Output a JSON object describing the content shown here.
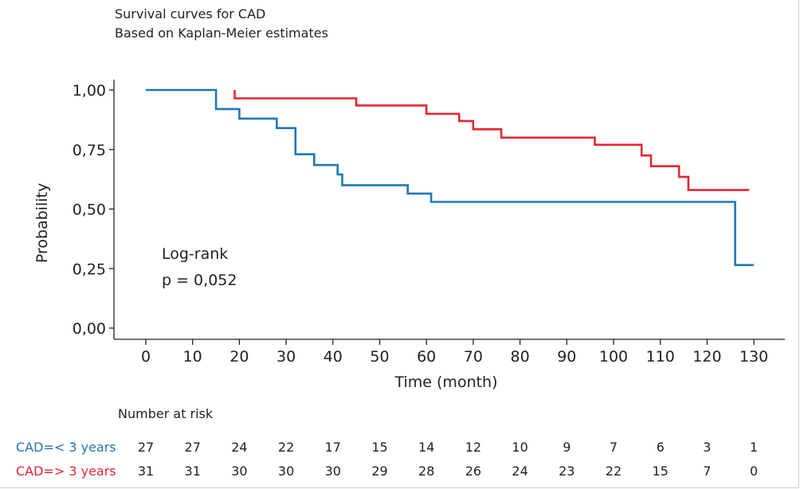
{
  "header": {
    "title": "Survival curves for CAD",
    "subtitle": "Based on Kaplan-Meier estimates"
  },
  "chart_data": {
    "type": "line",
    "subtype": "kaplan-meier-step",
    "title": "Survival curves for CAD",
    "subtitle": "Based on Kaplan-Meier estimates",
    "xlabel": "Time (month)",
    "ylabel": "Probability",
    "xlim": [
      0,
      130
    ],
    "ylim": [
      0,
      1
    ],
    "x_ticks": [
      0,
      10,
      20,
      30,
      40,
      50,
      60,
      70,
      80,
      90,
      100,
      110,
      120,
      130
    ],
    "y_ticks": [
      0,
      0.25,
      0.5,
      0.75,
      1
    ],
    "y_tick_labels": [
      "0,00",
      "0,25",
      "0,50",
      "0,75",
      "1,00"
    ],
    "series": [
      {
        "name": "CAD=< 3 years",
        "color": "#1f77b4",
        "points": [
          [
            0,
            1.0
          ],
          [
            15,
            1.0
          ],
          [
            15,
            0.92
          ],
          [
            20,
            0.92
          ],
          [
            20,
            0.88
          ],
          [
            28,
            0.88
          ],
          [
            28,
            0.84
          ],
          [
            32,
            0.84
          ],
          [
            32,
            0.73
          ],
          [
            36,
            0.73
          ],
          [
            36,
            0.685
          ],
          [
            41,
            0.685
          ],
          [
            41,
            0.645
          ],
          [
            42,
            0.645
          ],
          [
            42,
            0.6
          ],
          [
            56,
            0.6
          ],
          [
            56,
            0.565
          ],
          [
            61,
            0.565
          ],
          [
            61,
            0.53
          ],
          [
            126,
            0.53
          ],
          [
            126,
            0.265
          ],
          [
            130,
            0.265
          ]
        ]
      },
      {
        "name": "CAD=> 3 years",
        "color": "#e3262f",
        "points": [
          [
            19,
            1.0
          ],
          [
            19,
            0.965
          ],
          [
            45,
            0.965
          ],
          [
            45,
            0.935
          ],
          [
            60,
            0.935
          ],
          [
            60,
            0.9
          ],
          [
            67,
            0.9
          ],
          [
            67,
            0.87
          ],
          [
            70,
            0.87
          ],
          [
            70,
            0.835
          ],
          [
            76,
            0.835
          ],
          [
            76,
            0.8
          ],
          [
            96,
            0.8
          ],
          [
            96,
            0.77
          ],
          [
            106,
            0.77
          ],
          [
            106,
            0.725
          ],
          [
            108,
            0.725
          ],
          [
            108,
            0.68
          ],
          [
            114,
            0.68
          ],
          [
            114,
            0.635
          ],
          [
            116,
            0.635
          ],
          [
            116,
            0.58
          ],
          [
            129,
            0.58
          ]
        ]
      }
    ],
    "annotation": {
      "line1": "Log-rank",
      "line2": "p = 0,052"
    }
  },
  "risk_table": {
    "title": "Number at risk",
    "times": [
      0,
      10,
      20,
      30,
      40,
      50,
      60,
      70,
      80,
      90,
      100,
      110,
      120,
      130
    ],
    "rows": [
      {
        "label": "CAD=< 3 years",
        "color": "#1f77b4",
        "values": [
          "27",
          "27",
          "24",
          "22",
          "17",
          "15",
          "14",
          "12",
          "10",
          "9",
          "7",
          "6",
          "3",
          "1"
        ]
      },
      {
        "label": "CAD=> 3 years",
        "color": "#e3262f",
        "values": [
          "31",
          "31",
          "30",
          "30",
          "30",
          "29",
          "28",
          "26",
          "24",
          "23",
          "22",
          "15",
          "7",
          "0"
        ]
      }
    ]
  }
}
